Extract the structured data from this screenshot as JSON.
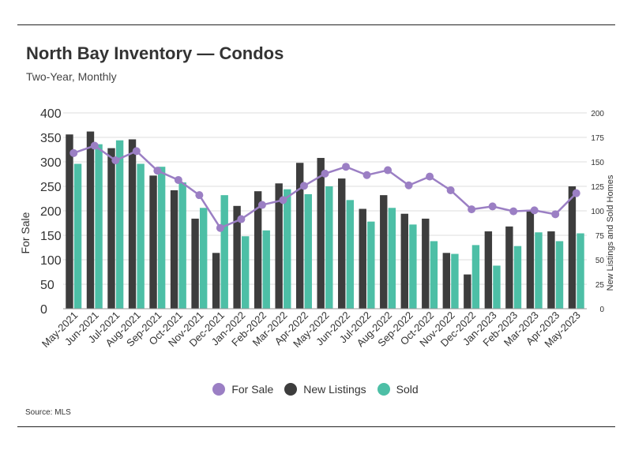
{
  "title": "North Bay Inventory — Condos",
  "subtitle": "Two-Year, Monthly",
  "source": "Source: MLS",
  "colors": {
    "for_sale": "#9b7fc4",
    "new_listings": "#3d3d3d",
    "sold": "#4dbfa6",
    "grid": "#dddddd"
  },
  "legend": [
    {
      "label": "For Sale",
      "color": "#9b7fc4"
    },
    {
      "label": "New Listings",
      "color": "#3d3d3d"
    },
    {
      "label": "Sold",
      "color": "#4dbfa6"
    }
  ],
  "chart_data": {
    "type": "bar",
    "categories": [
      "May-2021",
      "Jun-2021",
      "Jul-2021",
      "Aug-2021",
      "Sep-2021",
      "Oct-2021",
      "Nov-2021",
      "Dec-2021",
      "Jan-2022",
      "Feb-2022",
      "Mar-2022",
      "Apr-2022",
      "May-2022",
      "Jun-2022",
      "Jul-2022",
      "Aug-2022",
      "Sep-2022",
      "Oct-2022",
      "Nov-2022",
      "Dec-2022",
      "Jan-2023",
      "Feb-2023",
      "Mar-2023",
      "Apr-2023",
      "May-2023"
    ],
    "ylabel": "For Sale",
    "y2label": "New Listings and Sold Homes",
    "ylim": [
      0,
      400
    ],
    "y2lim": [
      0,
      200
    ],
    "yticks": [
      "0",
      "50",
      "100",
      "150",
      "200",
      "250",
      "300",
      "350",
      "400"
    ],
    "y2ticks": [
      "0",
      "25",
      "50",
      "75",
      "100",
      "125",
      "150",
      "175",
      "200"
    ],
    "grid": true,
    "legend_position": "bottom",
    "series": [
      {
        "name": "New Listings",
        "type": "bar",
        "axis": "right",
        "values": [
          178,
          181,
          164,
          173,
          136,
          121,
          92,
          57,
          105,
          120,
          128,
          149,
          154,
          133,
          102,
          116,
          97,
          92,
          57,
          35,
          79,
          84,
          101,
          79,
          125
        ]
      },
      {
        "name": "Sold",
        "type": "bar",
        "axis": "right",
        "values": [
          148,
          168,
          172,
          148,
          145,
          129,
          103,
          116,
          74,
          80,
          122,
          117,
          125,
          111,
          89,
          103,
          86,
          69,
          56,
          65,
          44,
          64,
          78,
          69,
          77
        ]
      },
      {
        "name": "For Sale",
        "type": "line",
        "axis": "left",
        "values": [
          318,
          333,
          303,
          322,
          282,
          263,
          232,
          165,
          183,
          212,
          222,
          251,
          276,
          290,
          273,
          283,
          252,
          270,
          242,
          203,
          209,
          199,
          201,
          193,
          236
        ]
      }
    ]
  }
}
